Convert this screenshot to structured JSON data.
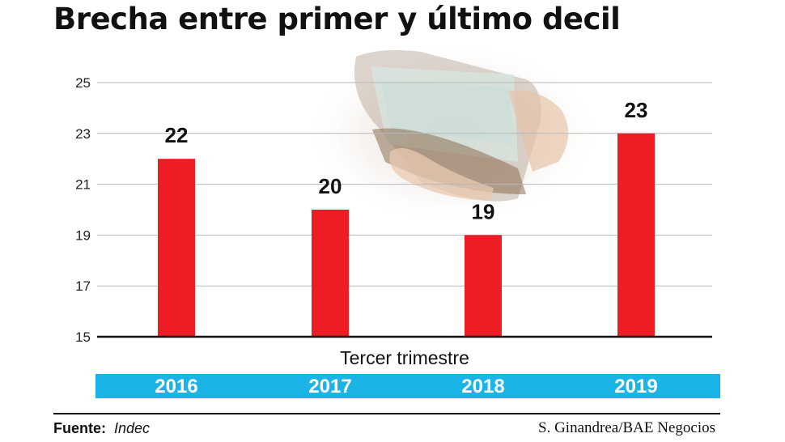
{
  "chart_data": {
    "type": "bar",
    "title": "Brecha entre primer y último decil",
    "subtitle": "Tercer trimestre",
    "categories": [
      "2016",
      "2017",
      "2018",
      "2019"
    ],
    "values": [
      22,
      20,
      19,
      23
    ],
    "data_labels": [
      "22",
      "20",
      "19",
      "23"
    ],
    "y_ticks": [
      "15",
      "17",
      "19",
      "21",
      "23",
      "25"
    ],
    "ylim": [
      15,
      25
    ],
    "grid": true,
    "bar_color": "#ee1c25",
    "category_band_color": "#1ab4e6"
  },
  "footer": {
    "source_label": "Fuente:",
    "source_value": "Indec",
    "credit": "S. Ginandrea/BAE Negocios"
  }
}
